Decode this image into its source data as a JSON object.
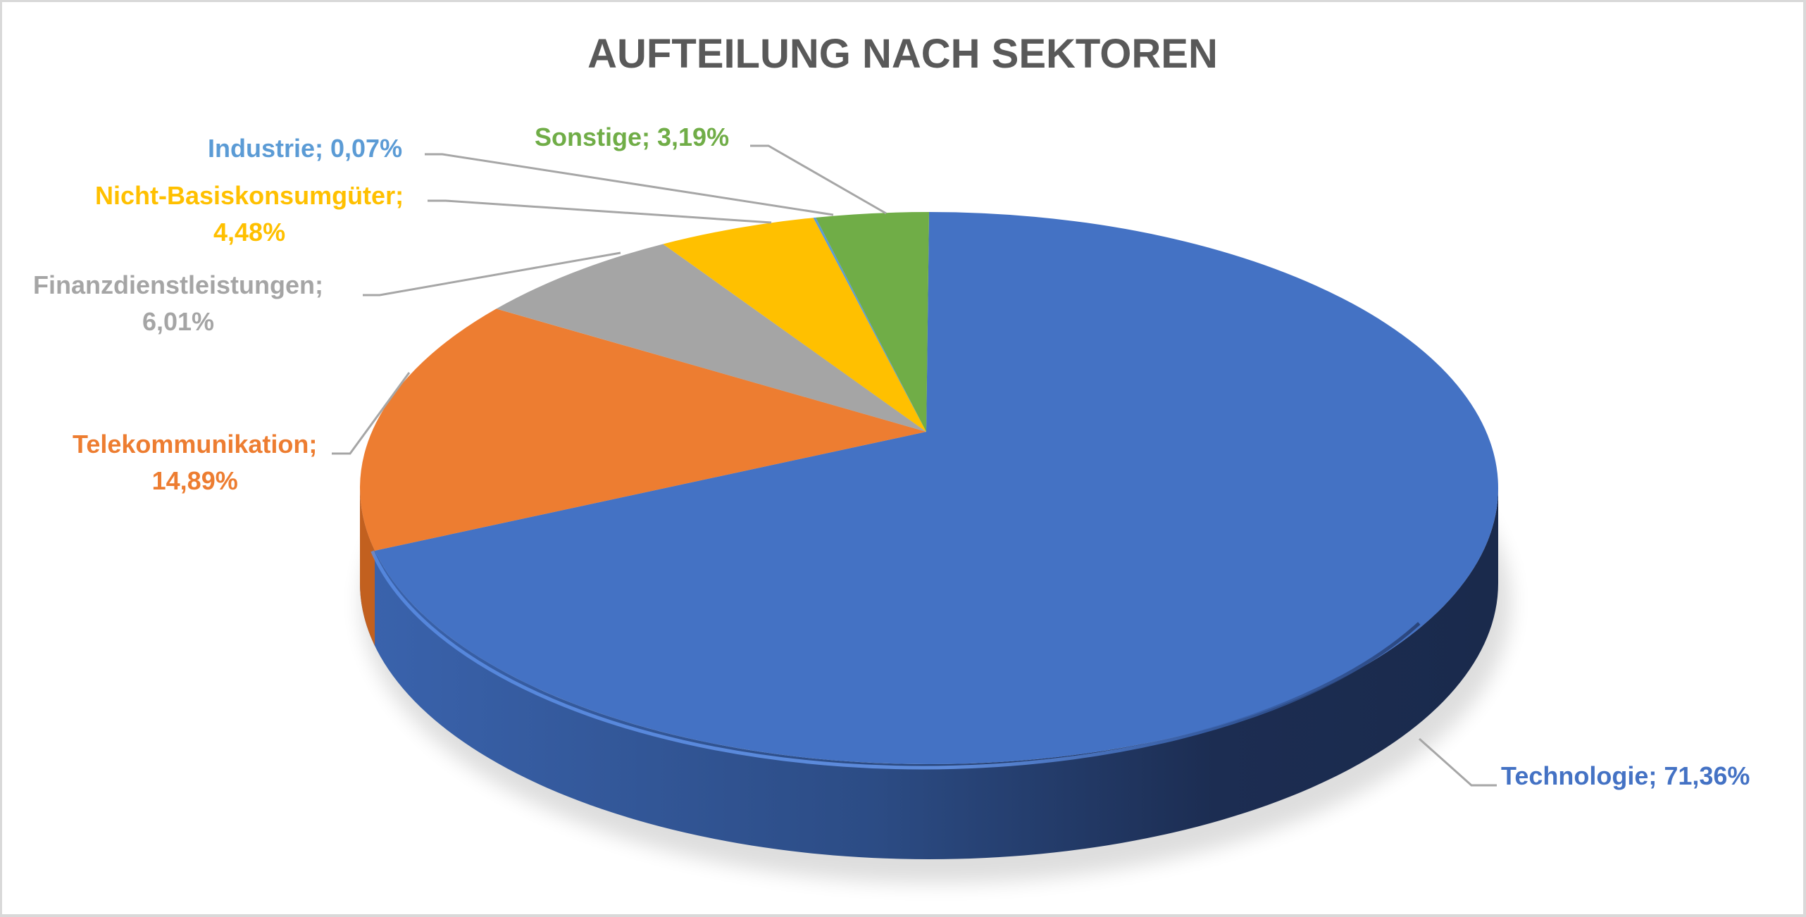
{
  "chart_data": {
    "type": "pie",
    "variant": "3d-pie",
    "title": "AUFTEILUNG NACH SEKTOREN",
    "categories": [
      "Technologie",
      "Telekommunikation",
      "Finanzdienstleistungen",
      "Nicht-Basiskonsumgüter",
      "Industrie",
      "Sonstige"
    ],
    "values": [
      71.36,
      14.89,
      6.01,
      4.48,
      0.07,
      3.19
    ],
    "unit": "%",
    "colors": [
      "#4472c4",
      "#ed7d31",
      "#a5a5a5",
      "#ffc000",
      "#5b9bd5",
      "#70ad47"
    ],
    "legend": "none",
    "data_labels": "category; percentage with leader lines"
  },
  "labels": [
    {
      "name": "Technologie",
      "line1": "Technologie; 71,36%",
      "line2": "",
      "color": "#4472c4"
    },
    {
      "name": "Telekommunikation",
      "line1": "Telekommunikation;",
      "line2": "14,89%",
      "color": "#ed7d31"
    },
    {
      "name": "Finanzdienstleistungen",
      "line1": "Finanzdienstleistungen;",
      "line2": "6,01%",
      "color": "#a5a5a5"
    },
    {
      "name": "Nicht-Basiskonsumgüter",
      "line1": "Nicht-Basiskonsumgüter;",
      "line2": "4,48%",
      "color": "#ffc000"
    },
    {
      "name": "Industrie",
      "line1": "Industrie; 0,07%",
      "line2": "",
      "color": "#5b9bd5"
    },
    {
      "name": "Sonstige",
      "line1": "Sonstige; 3,19%",
      "line2": "",
      "color": "#70ad47"
    }
  ]
}
